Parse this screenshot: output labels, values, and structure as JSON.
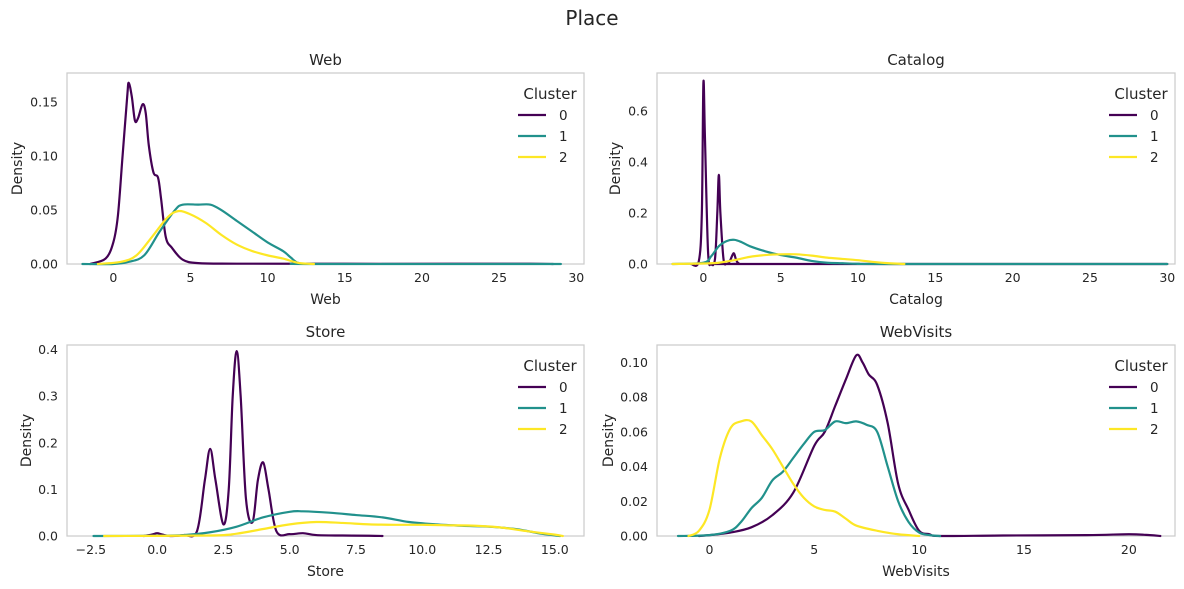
{
  "figure": {
    "title": "Place"
  },
  "colors": {
    "0": "#440154",
    "1": "#21918c",
    "2": "#fde725"
  },
  "chart_data": [
    {
      "type": "line",
      "title": "Web",
      "xlabel": "Web",
      "ylabel": "Density",
      "xlim": [
        -3,
        30.5
      ],
      "ylim": [
        0,
        0.177
      ],
      "xticks": [
        0,
        5,
        10,
        15,
        20,
        25,
        30
      ],
      "xtick_labels": [
        "0",
        "5",
        "10",
        "15",
        "20",
        "25",
        "30"
      ],
      "yticks": [
        0,
        0.05,
        0.1,
        0.15
      ],
      "ytick_labels": [
        "0.00",
        "0.05",
        "0.10",
        "0.15"
      ],
      "legend": {
        "title": "Cluster",
        "position": "top-right"
      },
      "series": [
        {
          "name": "0",
          "points": [
            [
              -1.5,
              0
            ],
            [
              -0.5,
              0.005
            ],
            [
              0,
              0.02
            ],
            [
              0.3,
              0.045
            ],
            [
              0.6,
              0.1
            ],
            [
              0.9,
              0.155
            ],
            [
              1.0,
              0.168
            ],
            [
              1.2,
              0.155
            ],
            [
              1.4,
              0.133
            ],
            [
              1.6,
              0.135
            ],
            [
              1.9,
              0.148
            ],
            [
              2.1,
              0.14
            ],
            [
              2.3,
              0.11
            ],
            [
              2.6,
              0.085
            ],
            [
              2.9,
              0.08
            ],
            [
              3.1,
              0.06
            ],
            [
              3.4,
              0.025
            ],
            [
              3.8,
              0.015
            ],
            [
              4.5,
              0.004
            ],
            [
              5.5,
              0.0008
            ],
            [
              8,
              0.0003
            ],
            [
              15,
              0.0002
            ],
            [
              22,
              0.0002
            ],
            [
              27,
              0.0003
            ],
            [
              28.5,
              0
            ]
          ]
        },
        {
          "name": "1",
          "points": [
            [
              -2,
              0
            ],
            [
              0,
              0
            ],
            [
              1,
              0.002
            ],
            [
              2,
              0.008
            ],
            [
              3,
              0.03
            ],
            [
              4,
              0.05
            ],
            [
              4.5,
              0.055
            ],
            [
              5.5,
              0.055
            ],
            [
              6.3,
              0.055
            ],
            [
              7,
              0.05
            ],
            [
              8,
              0.04
            ],
            [
              9,
              0.03
            ],
            [
              10,
              0.02
            ],
            [
              11,
              0.012
            ],
            [
              11.5,
              0.006
            ],
            [
              12,
              0.001
            ],
            [
              13,
              0
            ],
            [
              29,
              0
            ]
          ]
        },
        {
          "name": "2",
          "points": [
            [
              -1,
              0
            ],
            [
              0.5,
              0.002
            ],
            [
              1.5,
              0.008
            ],
            [
              2.5,
              0.025
            ],
            [
              3.5,
              0.043
            ],
            [
              4.2,
              0.049
            ],
            [
              5,
              0.046
            ],
            [
              6,
              0.038
            ],
            [
              7,
              0.027
            ],
            [
              8,
              0.018
            ],
            [
              9,
              0.012
            ],
            [
              10,
              0.008
            ],
            [
              11,
              0.005
            ],
            [
              12,
              0.001
            ],
            [
              13,
              0
            ]
          ]
        }
      ]
    },
    {
      "type": "line",
      "title": "Catalog",
      "xlabel": "Catalog",
      "ylabel": "Density",
      "xlim": [
        -3,
        30.5
      ],
      "ylim": [
        0,
        0.75
      ],
      "xticks": [
        0,
        5,
        10,
        15,
        20,
        25,
        30
      ],
      "xtick_labels": [
        "0",
        "5",
        "10",
        "15",
        "20",
        "25",
        "30"
      ],
      "yticks": [
        0,
        0.2,
        0.4,
        0.6
      ],
      "ytick_labels": [
        "0.0",
        "0.2",
        "0.4",
        "0.6"
      ],
      "legend": {
        "title": "Cluster",
        "position": "top-right"
      },
      "series": [
        {
          "name": "0",
          "points": [
            [
              -0.8,
              0
            ],
            [
              -0.3,
              0.01
            ],
            [
              -0.1,
              0.2
            ],
            [
              0,
              0.71
            ],
            [
              0.1,
              0.5
            ],
            [
              0.3,
              0.05
            ],
            [
              0.5,
              0
            ],
            [
              0.75,
              0.02
            ],
            [
              0.9,
              0.2
            ],
            [
              1.0,
              0.35
            ],
            [
              1.1,
              0.2
            ],
            [
              1.3,
              0.02
            ],
            [
              1.5,
              0
            ],
            [
              1.7,
              0.01
            ],
            [
              1.95,
              0.042
            ],
            [
              2.1,
              0.02
            ],
            [
              2.3,
              0.002
            ],
            [
              3,
              0
            ],
            [
              30,
              0
            ]
          ]
        },
        {
          "name": "1",
          "points": [
            [
              -2,
              0
            ],
            [
              0,
              0.005
            ],
            [
              0.5,
              0.03
            ],
            [
              1,
              0.07
            ],
            [
              1.5,
              0.09
            ],
            [
              2,
              0.095
            ],
            [
              2.5,
              0.085
            ],
            [
              3,
              0.07
            ],
            [
              4,
              0.05
            ],
            [
              5,
              0.035
            ],
            [
              6,
              0.025
            ],
            [
              7,
              0.012
            ],
            [
              8,
              0.005
            ],
            [
              9,
              0.003
            ],
            [
              10,
              0.001
            ],
            [
              12,
              0
            ],
            [
              30,
              0
            ]
          ]
        },
        {
          "name": "2",
          "points": [
            [
              -2,
              0
            ],
            [
              0,
              0.002
            ],
            [
              1,
              0.005
            ],
            [
              2,
              0.015
            ],
            [
              3,
              0.028
            ],
            [
              4,
              0.035
            ],
            [
              5,
              0.038
            ],
            [
              6,
              0.038
            ],
            [
              7,
              0.033
            ],
            [
              8,
              0.025
            ],
            [
              9,
              0.02
            ],
            [
              10,
              0.015
            ],
            [
              11,
              0.008
            ],
            [
              12,
              0.003
            ],
            [
              13,
              0
            ]
          ]
        }
      ]
    },
    {
      "type": "line",
      "title": "Store",
      "xlabel": "Store",
      "ylabel": "Density",
      "xlim": [
        -3.4,
        16.1
      ],
      "ylim": [
        0,
        0.41
      ],
      "xticks": [
        -2.5,
        0,
        2.5,
        5,
        7.5,
        10,
        12.5,
        15
      ],
      "xtick_labels": [
        "−2.5",
        "0.0",
        "2.5",
        "5.0",
        "7.5",
        "10.0",
        "12.5",
        "15.0"
      ],
      "yticks": [
        0,
        0.1,
        0.2,
        0.3,
        0.4
      ],
      "ytick_labels": [
        "0.0",
        "0.1",
        "0.2",
        "0.3",
        "0.4"
      ],
      "legend": {
        "title": "Cluster",
        "position": "top-right"
      },
      "series": [
        {
          "name": "0",
          "points": [
            [
              -0.5,
              0
            ],
            [
              -0.2,
              0.003
            ],
            [
              0,
              0.006
            ],
            [
              0.2,
              0.003
            ],
            [
              0.5,
              0
            ],
            [
              1,
              0.002
            ],
            [
              1.5,
              0.01
            ],
            [
              1.8,
              0.12
            ],
            [
              2,
              0.187
            ],
            [
              2.2,
              0.12
            ],
            [
              2.5,
              0.025
            ],
            [
              2.7,
              0.1
            ],
            [
              2.85,
              0.3
            ],
            [
              3,
              0.397
            ],
            [
              3.15,
              0.3
            ],
            [
              3.35,
              0.08
            ],
            [
              3.6,
              0.03
            ],
            [
              3.8,
              0.12
            ],
            [
              4,
              0.158
            ],
            [
              4.2,
              0.1
            ],
            [
              4.5,
              0.01
            ],
            [
              5,
              0.004
            ],
            [
              5.5,
              0.006
            ],
            [
              6,
              0.002
            ],
            [
              7,
              0.001
            ],
            [
              8,
              0.0005
            ],
            [
              8.5,
              0
            ]
          ]
        },
        {
          "name": "1",
          "points": [
            [
              -2.4,
              0
            ],
            [
              0,
              0.0005
            ],
            [
              1,
              0.002
            ],
            [
              2,
              0.008
            ],
            [
              3,
              0.02
            ],
            [
              4,
              0.04
            ],
            [
              5,
              0.052
            ],
            [
              5.5,
              0.053
            ],
            [
              6.5,
              0.05
            ],
            [
              7.5,
              0.045
            ],
            [
              8.5,
              0.04
            ],
            [
              9.5,
              0.03
            ],
            [
              10.5,
              0.025
            ],
            [
              11.5,
              0.022
            ],
            [
              12.5,
              0.02
            ],
            [
              13.5,
              0.015
            ],
            [
              14.5,
              0.005
            ],
            [
              15.2,
              0
            ]
          ]
        },
        {
          "name": "2",
          "points": [
            [
              -2,
              0
            ],
            [
              2,
              0.001
            ],
            [
              3,
              0.005
            ],
            [
              4,
              0.015
            ],
            [
              5,
              0.025
            ],
            [
              6,
              0.03
            ],
            [
              7,
              0.028
            ],
            [
              8,
              0.025
            ],
            [
              9,
              0.024
            ],
            [
              10,
              0.024
            ],
            [
              11,
              0.023
            ],
            [
              12,
              0.022
            ],
            [
              13,
              0.018
            ],
            [
              14,
              0.01
            ],
            [
              15,
              0.003
            ],
            [
              15.3,
              0
            ]
          ]
        }
      ]
    },
    {
      "type": "line",
      "title": "WebVisits",
      "xlabel": "WebVisits",
      "ylabel": "Density",
      "xlim": [
        -2.5,
        22.2
      ],
      "ylim": [
        0,
        0.11
      ],
      "xticks": [
        0,
        5,
        10,
        15,
        20
      ],
      "xtick_labels": [
        "0",
        "5",
        "10",
        "15",
        "20"
      ],
      "yticks": [
        0,
        0.02,
        0.04,
        0.06,
        0.08,
        0.1
      ],
      "ytick_labels": [
        "0.00",
        "0.02",
        "0.04",
        "0.06",
        "0.08",
        "0.10"
      ],
      "legend": {
        "title": "Cluster",
        "position": "top-right"
      },
      "series": [
        {
          "name": "0",
          "points": [
            [
              -0.5,
              0
            ],
            [
              0,
              0.0005
            ],
            [
              1,
              0.002
            ],
            [
              2,
              0.005
            ],
            [
              3,
              0.012
            ],
            [
              4,
              0.025
            ],
            [
              5,
              0.052
            ],
            [
              5.5,
              0.06
            ],
            [
              6,
              0.075
            ],
            [
              6.5,
              0.09
            ],
            [
              7,
              0.104
            ],
            [
              7.3,
              0.1
            ],
            [
              7.6,
              0.093
            ],
            [
              8,
              0.087
            ],
            [
              8.5,
              0.065
            ],
            [
              9,
              0.03
            ],
            [
              9.5,
              0.015
            ],
            [
              10,
              0.003
            ],
            [
              10.5,
              0.001
            ],
            [
              11,
              0
            ],
            [
              14,
              0.0003
            ],
            [
              18,
              0.0005
            ],
            [
              20,
              0.001
            ],
            [
              21,
              0.0005
            ],
            [
              21.5,
              0
            ]
          ]
        },
        {
          "name": "1",
          "points": [
            [
              -1.5,
              0
            ],
            [
              0,
              0.0005
            ],
            [
              1,
              0.003
            ],
            [
              1.5,
              0.008
            ],
            [
              2,
              0.016
            ],
            [
              2.5,
              0.022
            ],
            [
              3,
              0.032
            ],
            [
              3.5,
              0.037
            ],
            [
              4,
              0.045
            ],
            [
              4.5,
              0.053
            ],
            [
              5,
              0.06
            ],
            [
              5.5,
              0.061
            ],
            [
              6,
              0.066
            ],
            [
              6.5,
              0.065
            ],
            [
              7,
              0.066
            ],
            [
              7.5,
              0.064
            ],
            [
              8,
              0.06
            ],
            [
              8.5,
              0.04
            ],
            [
              9,
              0.02
            ],
            [
              9.5,
              0.008
            ],
            [
              10,
              0.002
            ],
            [
              10.5,
              0.0005
            ],
            [
              11,
              0
            ]
          ]
        },
        {
          "name": "2",
          "points": [
            [
              -1,
              0
            ],
            [
              -0.5,
              0.003
            ],
            [
              0,
              0.015
            ],
            [
              0.5,
              0.045
            ],
            [
              1,
              0.062
            ],
            [
              1.5,
              0.066
            ],
            [
              2,
              0.066
            ],
            [
              2.5,
              0.058
            ],
            [
              3,
              0.05
            ],
            [
              3.5,
              0.04
            ],
            [
              4,
              0.03
            ],
            [
              4.5,
              0.022
            ],
            [
              5,
              0.017
            ],
            [
              5.5,
              0.015
            ],
            [
              6,
              0.014
            ],
            [
              6.5,
              0.01
            ],
            [
              7,
              0.006
            ],
            [
              8,
              0.003
            ],
            [
              9,
              0.001
            ],
            [
              10,
              0
            ]
          ]
        }
      ]
    }
  ]
}
